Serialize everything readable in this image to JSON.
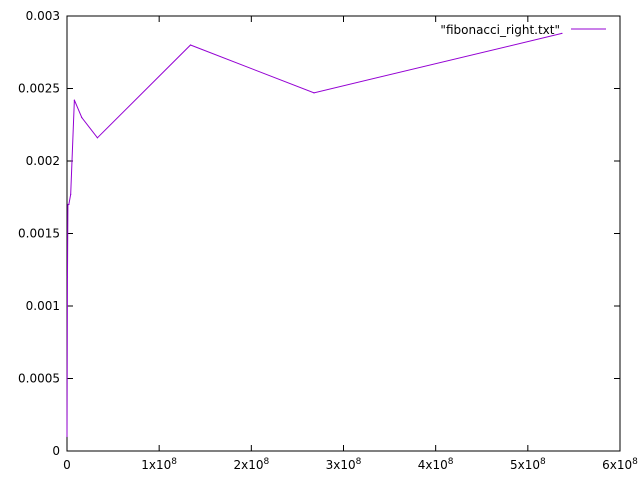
{
  "chart_data": {
    "type": "line",
    "title": "",
    "xlabel": "",
    "ylabel": "",
    "xlim": [
      0,
      600000000
    ],
    "ylim": [
      0,
      0.003
    ],
    "grid": false,
    "legend_position": "top-right",
    "x_ticks": [
      {
        "value": 0,
        "label": "0"
      },
      {
        "value": 100000000,
        "label": "1x10",
        "exp": "8"
      },
      {
        "value": 200000000,
        "label": "2x10",
        "exp": "8"
      },
      {
        "value": 300000000,
        "label": "3x10",
        "exp": "8"
      },
      {
        "value": 400000000,
        "label": "4x10",
        "exp": "8"
      },
      {
        "value": 500000000,
        "label": "5x10",
        "exp": "8"
      },
      {
        "value": 600000000,
        "label": "6x10",
        "exp": "8"
      }
    ],
    "y_ticks": [
      {
        "value": 0,
        "label": "0"
      },
      {
        "value": 0.0005,
        "label": "0.0005"
      },
      {
        "value": 0.001,
        "label": "0.001"
      },
      {
        "value": 0.0015,
        "label": "0.0015"
      },
      {
        "value": 0.002,
        "label": "0.002"
      },
      {
        "value": 0.0025,
        "label": "0.0025"
      },
      {
        "value": 0.003,
        "label": "0.003"
      }
    ],
    "series": [
      {
        "name": "\"fibonacci_right.txt\"",
        "color": "#9400d3",
        "x": [
          0,
          500000,
          1000000,
          2000000,
          4000000,
          8000000,
          16000000,
          33000000,
          134000000,
          268000000,
          537000000
        ],
        "y": [
          0.0001,
          0.0012,
          0.0017,
          0.0017,
          0.00177,
          0.00242,
          0.0023,
          0.00216,
          0.0028,
          0.00247,
          0.00288
        ]
      }
    ]
  }
}
